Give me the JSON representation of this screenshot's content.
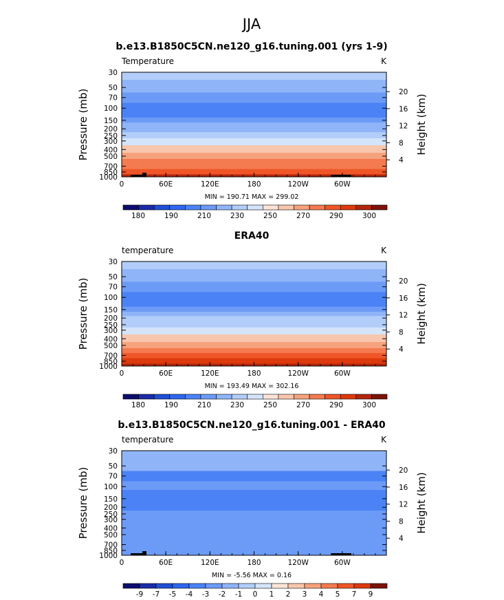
{
  "figure": {
    "title": "JJA"
  },
  "chart_data": [
    {
      "type": "heatmap",
      "title": "b.e13.B1850C5CN.ne120_g16.tuning.001 (yrs 1-9)",
      "left_string": "Temperature",
      "right_string": "K",
      "ylabel": "Pressure (mb)",
      "y2label": "Height (km)",
      "xticks": [
        "0",
        "60E",
        "120E",
        "180",
        "120W",
        "60W"
      ],
      "yticks": [
        "30",
        "50",
        "70",
        "100",
        "150",
        "200",
        "250",
        "300",
        "400",
        "500",
        "700",
        "850",
        "1000"
      ],
      "y2ticks": [
        "20",
        "16",
        "12",
        "8",
        "4"
      ],
      "stats_text": "MIN = 190.71  MAX = 299.02",
      "colorbar_labels": [
        "180",
        "190",
        "210",
        "230",
        "250",
        "270",
        "290",
        "300"
      ],
      "levels": [
        {
          "pressure": 30,
          "value": 225
        },
        {
          "pressure": 50,
          "value": 214
        },
        {
          "pressure": 70,
          "value": 203
        },
        {
          "pressure": 100,
          "value": 194
        },
        {
          "pressure": 125,
          "value": 196
        },
        {
          "pressure": 150,
          "value": 203
        },
        {
          "pressure": 175,
          "value": 212
        },
        {
          "pressure": 200,
          "value": 219
        },
        {
          "pressure": 250,
          "value": 227
        },
        {
          "pressure": 300,
          "value": 235
        },
        {
          "pressure": 400,
          "value": 250
        },
        {
          "pressure": 500,
          "value": 262
        },
        {
          "pressure": 600,
          "value": 271
        },
        {
          "pressure": 700,
          "value": 278
        },
        {
          "pressure": 850,
          "value": 287
        },
        {
          "pressure": 1000,
          "value": 296
        }
      ]
    },
    {
      "type": "heatmap",
      "title": "ERA40",
      "left_string": "temperature",
      "right_string": "K",
      "ylabel": "Pressure (mb)",
      "y2label": "Height (km)",
      "xticks": [
        "0",
        "60E",
        "120E",
        "180",
        "120W",
        "60W"
      ],
      "yticks": [
        "30",
        "50",
        "70",
        "100",
        "150",
        "200",
        "250",
        "300",
        "400",
        "500",
        "700",
        "850",
        "1000"
      ],
      "y2ticks": [
        "20",
        "16",
        "12",
        "8",
        "4"
      ],
      "stats_text": "MIN = 193.49  MAX = 302.16",
      "colorbar_labels": [
        "180",
        "190",
        "210",
        "230",
        "250",
        "270",
        "290",
        "300"
      ],
      "levels": [
        {
          "pressure": 30,
          "value": 226
        },
        {
          "pressure": 50,
          "value": 216
        },
        {
          "pressure": 70,
          "value": 206
        },
        {
          "pressure": 100,
          "value": 197
        },
        {
          "pressure": 125,
          "value": 199
        },
        {
          "pressure": 150,
          "value": 206
        },
        {
          "pressure": 175,
          "value": 214
        },
        {
          "pressure": 200,
          "value": 221
        },
        {
          "pressure": 250,
          "value": 229
        },
        {
          "pressure": 300,
          "value": 238
        },
        {
          "pressure": 400,
          "value": 252
        },
        {
          "pressure": 500,
          "value": 264
        },
        {
          "pressure": 600,
          "value": 273
        },
        {
          "pressure": 700,
          "value": 280
        },
        {
          "pressure": 850,
          "value": 290
        },
        {
          "pressure": 1000,
          "value": 299
        }
      ]
    },
    {
      "type": "heatmap",
      "title": "b.e13.B1850C5CN.ne120_g16.tuning.001 - ERA40",
      "left_string": "temperature",
      "right_string": "K",
      "ylabel": "Pressure (mb)",
      "y2label": "Height (km)",
      "xticks": [
        "0",
        "60E",
        "120E",
        "180",
        "120W",
        "60W"
      ],
      "yticks": [
        "30",
        "50",
        "70",
        "100",
        "150",
        "200",
        "250",
        "300",
        "400",
        "500",
        "700",
        "850",
        "1000"
      ],
      "y2ticks": [
        "20",
        "16",
        "12",
        "8",
        "4"
      ],
      "stats_text": "MIN =  -5.56  MAX =   0.16",
      "colorbar_labels": [
        "-9",
        "-7",
        "-5",
        "-4",
        "-3",
        "-2",
        "-1",
        "0",
        "1",
        "2",
        "3",
        "4",
        "5",
        "7",
        "9"
      ],
      "levels": [
        {
          "pressure": 30,
          "value": -1.2
        },
        {
          "pressure": 50,
          "value": -2.0
        },
        {
          "pressure": 70,
          "value": -3.1
        },
        {
          "pressure": 100,
          "value": -2.6
        },
        {
          "pressure": 125,
          "value": -3.2
        },
        {
          "pressure": 150,
          "value": -3.4
        },
        {
          "pressure": 200,
          "value": -3.6
        },
        {
          "pressure": 250,
          "value": -3.0
        },
        {
          "pressure": 300,
          "value": -2.8
        },
        {
          "pressure": 400,
          "value": -2.4
        },
        {
          "pressure": 500,
          "value": -2.6
        },
        {
          "pressure": 700,
          "value": -2.3
        },
        {
          "pressure": 850,
          "value": -2.7
        },
        {
          "pressure": 1000,
          "value": -3.0
        }
      ]
    }
  ],
  "palettes": {
    "absolute": [
      "#0d0d6e",
      "#1a2ca8",
      "#1f4fd4",
      "#2e66ee",
      "#4b82f5",
      "#6c9bf7",
      "#8fb4f8",
      "#b2cdf9",
      "#d4e4fb",
      "#fbe3d6",
      "#f8c6ad",
      "#f6a27c",
      "#f47a4f",
      "#ef5527",
      "#dd3a0d",
      "#b2260c",
      "#7c1309"
    ],
    "absolute_bounds": [
      170,
      180,
      185,
      190,
      200,
      210,
      220,
      230,
      240,
      250,
      260,
      270,
      280,
      290,
      295,
      300
    ],
    "difference": [
      "#0d0d6e",
      "#1a2ca8",
      "#1f4fd4",
      "#2e66ee",
      "#4b82f5",
      "#6c9bf7",
      "#8fb4f8",
      "#b2cdf9",
      "#d4e4fb",
      "#fbe3d6",
      "#f8c6ad",
      "#f6a27c",
      "#f47a4f",
      "#ef5527",
      "#dd3a0d",
      "#7c1309"
    ],
    "difference_bounds": [
      -9,
      -7,
      -5,
      -4,
      -3,
      -2,
      -1,
      0,
      1,
      2,
      3,
      4,
      5,
      7,
      9
    ]
  }
}
